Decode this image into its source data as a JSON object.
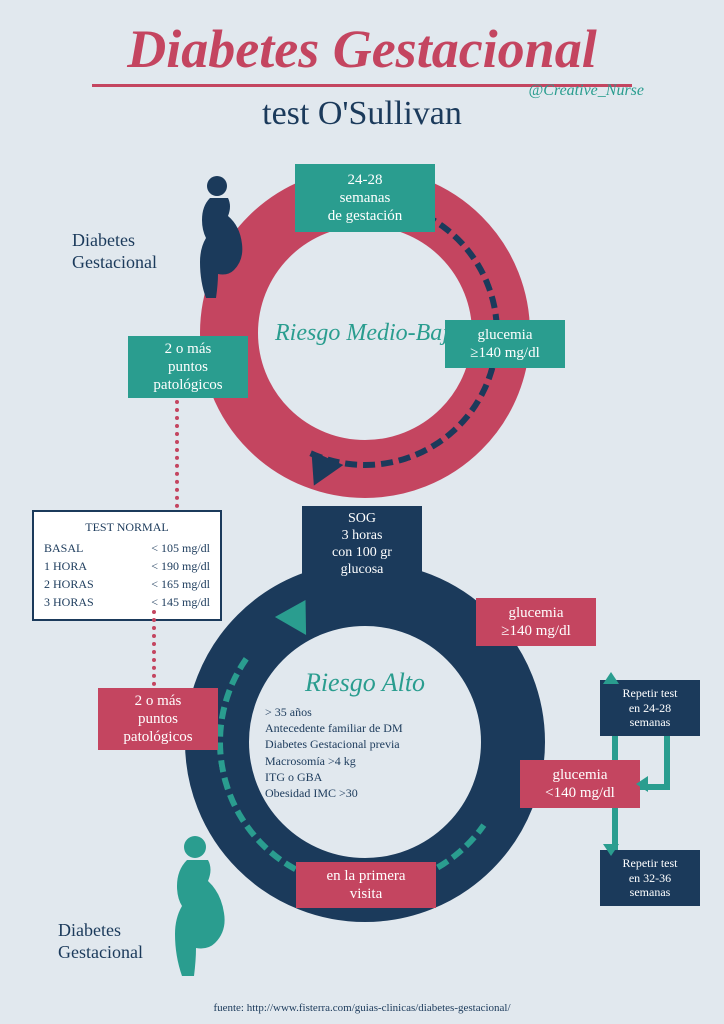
{
  "title": "Diabetes Gestacional",
  "subtitle": "test O'Sullivan",
  "handle": "@Creative_Nurse",
  "colors": {
    "pink": "#c44560",
    "navy": "#1b3a5b",
    "teal": "#2a9d8f",
    "bg": "#e1e8ee"
  },
  "topRing": {
    "centerLabel": "Riesgo Medio-Bajo",
    "boxes": {
      "weeks": "24-28\nsemanas\nde gestación",
      "glucemia": "glucemia\n≥140 mg/dl",
      "puntos": "2 o más\npuntos\npatológicos"
    }
  },
  "centerBox": "SOG\n3 horas\ncon 100 gr\nglucosa",
  "bottomRing": {
    "centerLabel": "Riesgo Alto",
    "riskFactors": [
      "> 35 años",
      "Antecedente familiar de DM",
      "Diabetes Gestacional previa",
      "Macrosomía >4 kg",
      "ITG o GBA",
      "Obesidad IMC >30"
    ],
    "boxes": {
      "primeraVisita": "en la primera\nvisita",
      "glucemiaHigh": "glucemia\n≥140 mg/dl",
      "glucemiaLow": "glucemia\n<140 mg/dl",
      "puntos": "2 o más\npuntos\npatológicos",
      "repeat1": "Repetir test\nen 24-28\nsemanas",
      "repeat2": "Repetir test\nen 32-36\nsemanas"
    }
  },
  "labels": {
    "dgTop": "Diabetes\nGestacional",
    "dgBottom": "Diabetes\nGestacional"
  },
  "table": {
    "header": "TEST NORMAL",
    "rows": [
      {
        "label": "BASAL",
        "value": "< 105 mg/dl"
      },
      {
        "label": "1 HORA",
        "value": "< 190 mg/dl"
      },
      {
        "label": "2 HORAS",
        "value": "< 165 mg/dl"
      },
      {
        "label": "3 HORAS",
        "value": "< 145 mg/dl"
      }
    ]
  },
  "footer": "fuente: http://www.fisterra.com/guias-clinicas/diabetes-gestacional/"
}
